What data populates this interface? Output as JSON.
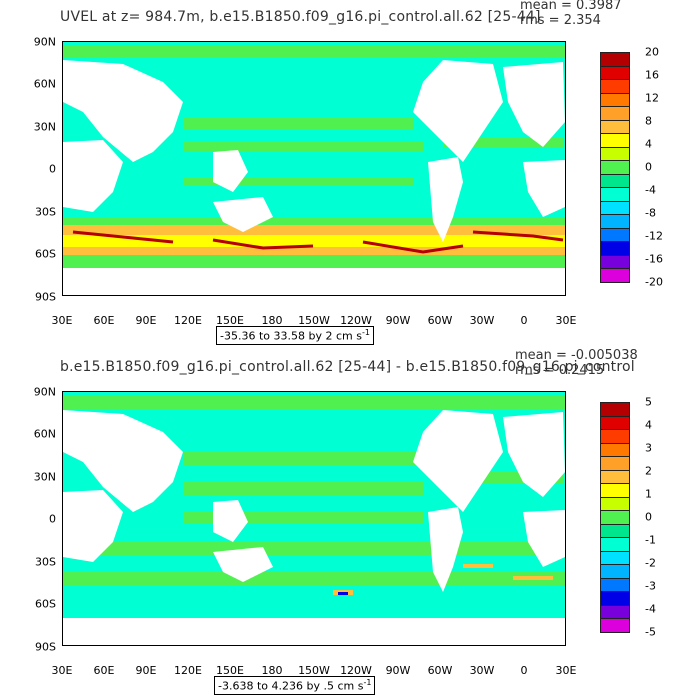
{
  "panels": [
    {
      "title": "UVEL at z= 984.7m, b.e15.B1850.f09_g16.pi_control.all.62 [25-44]",
      "mean_text": "mean = 0.3987",
      "rms_text": "rms = 2.354",
      "range_text": "-35.36 to 33.58 by 2 cm s",
      "range_sup": "-1",
      "colorbar_labels": [
        "20",
        "16",
        "12",
        "8",
        "4",
        "0",
        "-4",
        "-8",
        "-12",
        "-16",
        "-20"
      ]
    },
    {
      "title": "b.e15.B1850.f09_g16.pi_control.all.62 [25-44] - b.e15.B1850.f09_g16.pi_control",
      "mean_text": "mean = -0.005038",
      "rms_text": "rms = 0.2415",
      "range_text": "-3.638 to 4.236 by .5 cm s",
      "range_sup": "-1",
      "colorbar_labels": [
        "5",
        "4",
        "3",
        "2",
        "1",
        "0",
        "-1",
        "-2",
        "-3",
        "-4",
        "-5"
      ]
    }
  ],
  "lat_labels": [
    "90N",
    "60N",
    "30N",
    "0",
    "30S",
    "60S",
    "90S"
  ],
  "lon_labels": [
    "30E",
    "60E",
    "90E",
    "120E",
    "150E",
    "180",
    "150W",
    "120W",
    "90W",
    "60W",
    "30W",
    "0",
    "30E"
  ],
  "colorbar_colors": [
    "#b40000",
    "#e10000",
    "#ff3c00",
    "#ff7800",
    "#ffa028",
    "#ffbe3c",
    "#ffff00",
    "#c8ff00",
    "#50f050",
    "#00e68c",
    "#00ffd2",
    "#00e1ff",
    "#00b4ff",
    "#0078ff",
    "#0000e6",
    "#7800dc",
    "#dc00dc",
    "#bebebe",
    "#6e6e6e"
  ],
  "map_colors": {
    "land": "#ffffff",
    "ocean": "#00ffd2",
    "positive": "#50f050",
    "strong": "#ffff00",
    "jet": "#ff3c00"
  }
}
